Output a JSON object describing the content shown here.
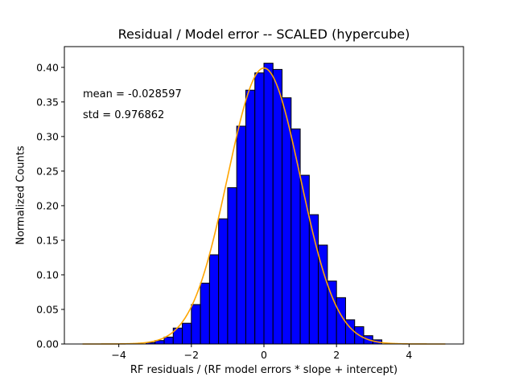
{
  "chart_data": {
    "type": "bar",
    "title": "Residual / Model error -- SCALED (hypercube)",
    "xlabel": "RF residuals / (RF model errors * slope + intercept)",
    "ylabel": "Normalized Counts",
    "xlim": [
      -5.5,
      5.5
    ],
    "ylim": [
      0.0,
      0.43
    ],
    "xticks": [
      -4,
      -2,
      0,
      2,
      4
    ],
    "xtick_labels": [
      "−4",
      "−2",
      "0",
      "2",
      "4"
    ],
    "yticks": [
      0.0,
      0.05,
      0.1,
      0.15,
      0.2,
      0.25,
      0.3,
      0.35,
      0.4
    ],
    "ytick_labels": [
      "0.00",
      "0.05",
      "0.10",
      "0.15",
      "0.20",
      "0.25",
      "0.30",
      "0.35",
      "0.40"
    ],
    "grid": false,
    "histogram": {
      "bin_edges": [
        -3.25,
        -3.0,
        -2.75,
        -2.5,
        -2.25,
        -2.0,
        -1.75,
        -1.5,
        -1.25,
        -1.0,
        -0.75,
        -0.5,
        -0.25,
        0.0,
        0.25,
        0.5,
        0.75,
        1.0,
        1.25,
        1.5,
        1.75,
        2.0,
        2.25,
        2.5,
        2.75,
        3.0,
        3.25
      ],
      "values": [
        0.002,
        0.005,
        0.01,
        0.023,
        0.03,
        0.057,
        0.088,
        0.129,
        0.181,
        0.226,
        0.315,
        0.367,
        0.392,
        0.406,
        0.397,
        0.356,
        0.311,
        0.244,
        0.187,
        0.143,
        0.091,
        0.067,
        0.035,
        0.025,
        0.012,
        0.006
      ],
      "fill_color": "#0000ff",
      "edge_color": "#000000"
    },
    "fit_curve": {
      "kind": "standard normal pdf",
      "mean": 0,
      "std": 1,
      "x_range": [
        -5,
        5
      ],
      "color": "#ffa500"
    },
    "annotations": [
      "mean = -0.028597",
      "std = 0.976862"
    ]
  }
}
